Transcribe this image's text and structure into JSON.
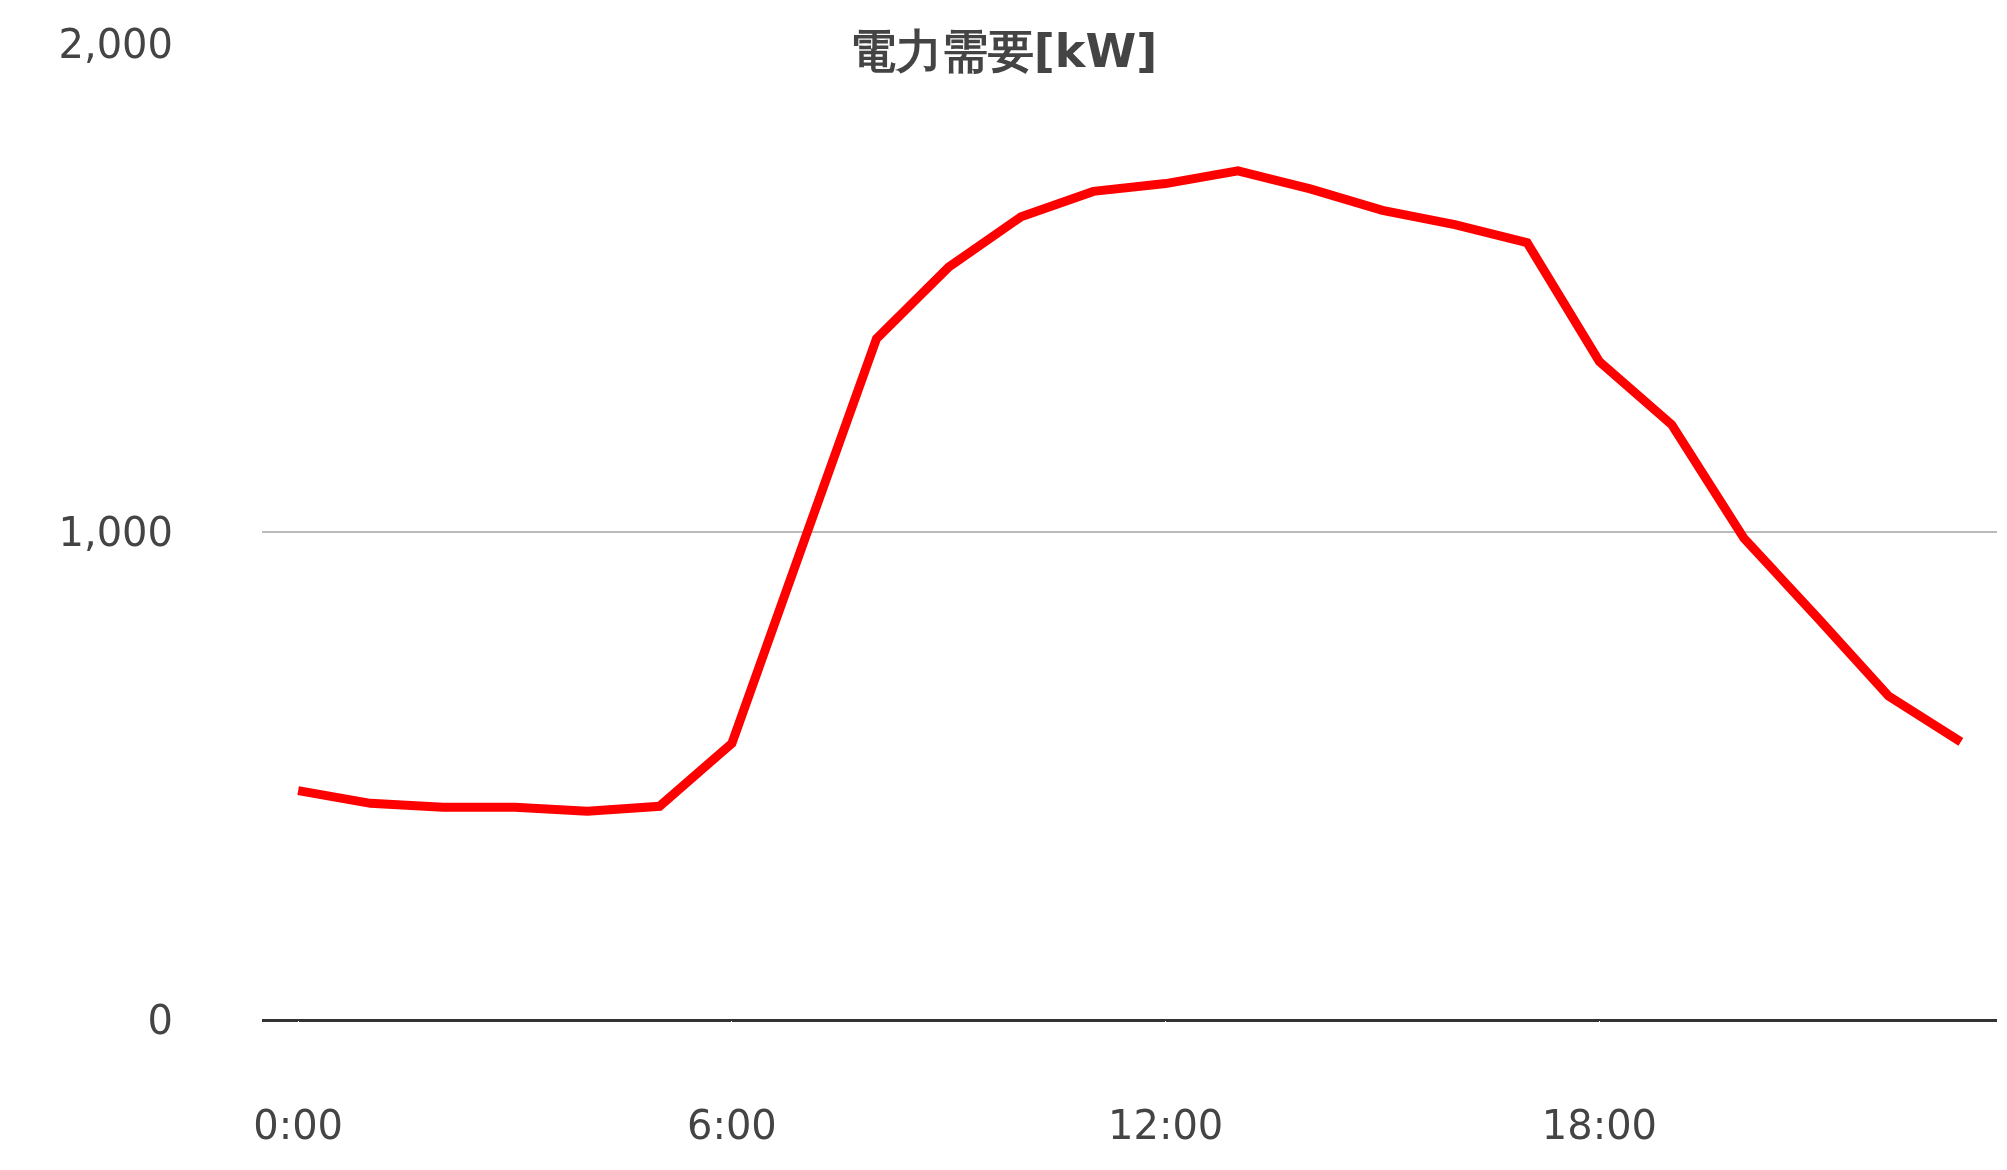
{
  "chart_data": {
    "type": "line",
    "title": "電力需要[kW]",
    "x": [
      0,
      1,
      2,
      3,
      4,
      5,
      6,
      7,
      8,
      9,
      10,
      11,
      12,
      13,
      14,
      15,
      16,
      17,
      18,
      19,
      20,
      21,
      22,
      23
    ],
    "series": [
      {
        "color": "#ff0000",
        "values": [
          470,
          444,
          436,
          436,
          428,
          438,
          567,
          982,
          1396,
          1543,
          1646,
          1698,
          1714,
          1740,
          1703,
          1659,
          1630,
          1593,
          1349,
          1220,
          987,
          827,
          664,
          570
        ]
      }
    ],
    "xlim": [
      -0.5,
      23.5
    ],
    "xticks": [
      {
        "value": 0,
        "label": "0:00"
      },
      {
        "value": 6,
        "label": "6:00"
      },
      {
        "value": 12,
        "label": "12:00"
      },
      {
        "value": 18,
        "label": "18:00"
      }
    ],
    "ylim": [
      0,
      2000
    ],
    "yticks": [
      {
        "value": 0,
        "label": "0"
      },
      {
        "value": 1000,
        "label": "1,000"
      },
      {
        "value": 2000,
        "label": "2,000"
      }
    ],
    "grid": "y",
    "marker": "none",
    "line_style": "solid"
  }
}
